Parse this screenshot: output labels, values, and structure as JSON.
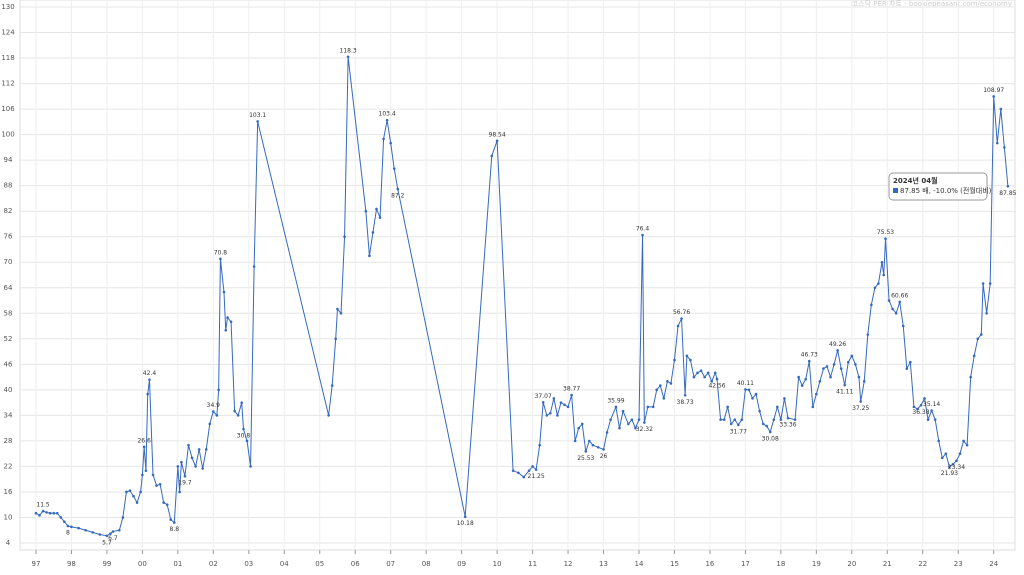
{
  "chart_data": {
    "type": "line",
    "watermark": "코스닥 PER 차트 - bookiepeasant.com/economy",
    "tooltip": {
      "title": "2024년 04월",
      "text": "87.85 배, -10.0% (전월대비)"
    },
    "color": "#3569c0",
    "grid": true,
    "xlim": [
      1996.55,
      2024.6
    ],
    "ylim": [
      4,
      130
    ],
    "yticks": [
      4,
      10,
      16,
      22,
      28,
      34,
      40,
      46,
      52,
      58,
      64,
      70,
      76,
      82,
      88,
      94,
      100,
      106,
      112,
      118,
      124,
      130
    ],
    "xticks": [
      {
        "value": 1997,
        "label": "97"
      },
      {
        "value": 1998,
        "label": "98"
      },
      {
        "value": 1999,
        "label": "99"
      },
      {
        "value": 2000,
        "label": "00"
      },
      {
        "value": 2001,
        "label": "01"
      },
      {
        "value": 2002,
        "label": "02"
      },
      {
        "value": 2003,
        "label": "03"
      },
      {
        "value": 2004,
        "label": "04"
      },
      {
        "value": 2005,
        "label": "05"
      },
      {
        "value": 2006,
        "label": "06"
      },
      {
        "value": 2007,
        "label": "07"
      },
      {
        "value": 2008,
        "label": "08"
      },
      {
        "value": 2009,
        "label": "09"
      },
      {
        "value": 2010,
        "label": "10"
      },
      {
        "value": 2011,
        "label": "11"
      },
      {
        "value": 2012,
        "label": "12"
      },
      {
        "value": 2013,
        "label": "13"
      },
      {
        "value": 2014,
        "label": "14"
      },
      {
        "value": 2015,
        "label": "15"
      },
      {
        "value": 2016,
        "label": "16"
      },
      {
        "value": 2017,
        "label": "17"
      },
      {
        "value": 2018,
        "label": "18"
      },
      {
        "value": 2019,
        "label": "19"
      },
      {
        "value": 2020,
        "label": "20"
      },
      {
        "value": 2021,
        "label": "21"
      },
      {
        "value": 2022,
        "label": "22"
      },
      {
        "value": 2023,
        "label": "23"
      },
      {
        "value": 2024,
        "label": "24"
      }
    ],
    "x": [
      1997.0,
      1997.1,
      1997.2,
      1997.3,
      1997.4,
      1997.5,
      1997.6,
      1997.7,
      1997.8,
      1997.9,
      1998.0,
      1998.2,
      1998.4,
      1998.6,
      1998.8,
      1999.0,
      1999.1,
      1999.17,
      1999.35,
      1999.45,
      1999.55,
      1999.65,
      1999.75,
      1999.85,
      1999.95,
      2000.0,
      2000.05,
      2000.1,
      2000.15,
      2000.2,
      2000.3,
      2000.4,
      2000.5,
      2000.6,
      2000.7,
      2000.8,
      2000.9,
      2001.0,
      2001.05,
      2001.1,
      2001.2,
      2001.3,
      2001.4,
      2001.5,
      2001.6,
      2001.7,
      2001.8,
      2001.9,
      2002.0,
      2002.1,
      2002.15,
      2002.2,
      2002.3,
      2002.35,
      2002.4,
      2002.5,
      2002.6,
      2002.7,
      2002.8,
      2002.85,
      2002.95,
      2003.05,
      2003.15,
      2003.25,
      2005.25,
      2005.35,
      2005.45,
      2005.5,
      2005.6,
      2005.7,
      2005.8,
      2006.3,
      2006.4,
      2006.5,
      2006.6,
      2006.7,
      2006.8,
      2006.9,
      2007.0,
      2007.1,
      2007.2,
      2009.1,
      2009.85,
      2010.0,
      2010.45,
      2010.6,
      2010.75,
      2010.9,
      2011.0,
      2011.1,
      2011.2,
      2011.3,
      2011.4,
      2011.5,
      2011.6,
      2011.7,
      2011.8,
      2011.9,
      2012.0,
      2012.1,
      2012.2,
      2012.3,
      2012.4,
      2012.5,
      2012.6,
      2012.7,
      2012.85,
      2013.0,
      2013.1,
      2013.2,
      2013.35,
      2013.45,
      2013.55,
      2013.7,
      2013.8,
      2013.9,
      2014.0,
      2014.1,
      2014.15,
      2014.25,
      2014.4,
      2014.5,
      2014.6,
      2014.7,
      2014.8,
      2014.9,
      2015.0,
      2015.1,
      2015.2,
      2015.3,
      2015.35,
      2015.45,
      2015.55,
      2015.65,
      2015.75,
      2015.85,
      2015.95,
      2016.05,
      2016.15,
      2016.2,
      2016.3,
      2016.4,
      2016.5,
      2016.6,
      2016.7,
      2016.8,
      2016.9,
      2017.0,
      2017.1,
      2017.2,
      2017.3,
      2017.4,
      2017.5,
      2017.6,
      2017.7,
      2017.8,
      2017.9,
      2018.0,
      2018.1,
      2018.2,
      2018.4,
      2018.5,
      2018.6,
      2018.7,
      2018.8,
      2018.9,
      2019.0,
      2019.1,
      2019.2,
      2019.3,
      2019.4,
      2019.5,
      2019.6,
      2019.7,
      2019.8,
      2019.9,
      2020.0,
      2020.1,
      2020.2,
      2020.25,
      2020.35,
      2020.45,
      2020.55,
      2020.65,
      2020.75,
      2020.85,
      2020.9,
      2020.95,
      2021.05,
      2021.15,
      2021.25,
      2021.35,
      2021.45,
      2021.55,
      2021.65,
      2021.75,
      2021.85,
      2021.95,
      2022.05,
      2022.15,
      2022.25,
      2022.35,
      2022.45,
      2022.55,
      2022.65,
      2022.75,
      2022.85,
      2022.95,
      2023.05,
      2023.15,
      2023.25,
      2023.35,
      2023.45,
      2023.55,
      2023.65,
      2023.7,
      2023.8,
      2023.9,
      2024.0,
      2024.1,
      2024.2,
      2024.3,
      2024.4
    ],
    "values": [
      11,
      10.5,
      11.5,
      11.2,
      11,
      11,
      11,
      10,
      9,
      8,
      7.8,
      7.5,
      7,
      6.5,
      6,
      5.7,
      6.2,
      6.7,
      7,
      10,
      16,
      16.3,
      15,
      13.5,
      16,
      20,
      26.6,
      21,
      39,
      42.4,
      20,
      17.5,
      17.8,
      13.5,
      13,
      9.5,
      8.8,
      22,
      16,
      23,
      19.7,
      27,
      24,
      22,
      26,
      21.5,
      26,
      32,
      34.9,
      34,
      40,
      70.8,
      63,
      54,
      57,
      56,
      35,
      34,
      37,
      30.8,
      28,
      22,
      69,
      103.1,
      34,
      41,
      52,
      59,
      58,
      76,
      118.3,
      82,
      71.5,
      77,
      82.5,
      80.5,
      99,
      103.4,
      98,
      92,
      87.2,
      10.18,
      95,
      98.54,
      21,
      20.5,
      19.5,
      21,
      22,
      21.25,
      27,
      37.07,
      34,
      34.5,
      38,
      34,
      37,
      36.5,
      36,
      38.77,
      28,
      31,
      32,
      25.53,
      28,
      27,
      26.5,
      26,
      30,
      33,
      35.99,
      31,
      35,
      32,
      33,
      31,
      33,
      76.4,
      32.32,
      36,
      36,
      40,
      41,
      38,
      42,
      41.5,
      47,
      55,
      56.76,
      38.73,
      48,
      47,
      43,
      44,
      44.5,
      43,
      44,
      42,
      44,
      42.56,
      33,
      33,
      36,
      32,
      33,
      31.77,
      33,
      40.11,
      40,
      38,
      39,
      35,
      32,
      31.5,
      30.08,
      33,
      36,
      33,
      38,
      33.36,
      33,
      43,
      41,
      42.5,
      46.73,
      36,
      39,
      42,
      45,
      45.5,
      43,
      46,
      49.26,
      45,
      41.11,
      46.5,
      48,
      46,
      43,
      37.25,
      42,
      53,
      60,
      64,
      65,
      70,
      67,
      75.53,
      61,
      59,
      58,
      60.66,
      55,
      45,
      46.5,
      36,
      35.5,
      36.38,
      38,
      33,
      35.14,
      33,
      28,
      24,
      25,
      21.93,
      22.5,
      23.34,
      25,
      28,
      27,
      43,
      48,
      52,
      53,
      65,
      58,
      65,
      108.97,
      98,
      106,
      97,
      87.85
    ],
    "value_labels": [
      null,
      null,
      "11.5",
      null,
      null,
      null,
      null,
      null,
      null,
      "8",
      null,
      null,
      null,
      null,
      null,
      "5.7",
      null,
      "6.7",
      null,
      null,
      null,
      null,
      null,
      null,
      null,
      null,
      "26.6",
      null,
      null,
      "42.4",
      null,
      null,
      null,
      null,
      null,
      null,
      "8.8",
      null,
      null,
      null,
      "19.7",
      null,
      null,
      null,
      null,
      null,
      null,
      null,
      "34.9",
      null,
      null,
      "70.8",
      null,
      null,
      null,
      null,
      null,
      null,
      null,
      "30.8",
      null,
      null,
      null,
      "103.1",
      null,
      null,
      null,
      null,
      null,
      null,
      "118.3",
      null,
      null,
      null,
      null,
      null,
      null,
      "103.4",
      null,
      null,
      "87.2",
      "10.18",
      null,
      "98.54",
      null,
      null,
      null,
      null,
      null,
      "21.25",
      null,
      "37.07",
      null,
      null,
      null,
      null,
      null,
      null,
      null,
      "38.77",
      null,
      null,
      null,
      "25.53",
      null,
      null,
      null,
      "26",
      null,
      null,
      "35.99",
      null,
      null,
      null,
      null,
      null,
      null,
      "76.4",
      "32.32",
      null,
      null,
      null,
      null,
      null,
      null,
      null,
      null,
      null,
      "56.76",
      "38.73",
      null,
      null,
      null,
      null,
      null,
      null,
      null,
      null,
      null,
      "42.56",
      null,
      null,
      null,
      null,
      null,
      "31.77",
      null,
      "40.11",
      null,
      null,
      null,
      null,
      null,
      null,
      "30.08",
      null,
      null,
      null,
      null,
      "33.36",
      null,
      null,
      null,
      null,
      "46.73",
      null,
      null,
      null,
      null,
      null,
      null,
      null,
      "49.26",
      null,
      "41.11",
      null,
      null,
      null,
      null,
      "37.25",
      null,
      null,
      null,
      null,
      null,
      null,
      null,
      "75.53",
      null,
      null,
      null,
      "60.66",
      null,
      null,
      null,
      null,
      null,
      "36.38",
      null,
      null,
      "35.14",
      null,
      null,
      null,
      null,
      "21.93",
      null,
      "23.34",
      null,
      null,
      null,
      null,
      null,
      null,
      null,
      null,
      null,
      null,
      "108.97",
      null,
      null,
      null,
      "87.85"
    ]
  }
}
